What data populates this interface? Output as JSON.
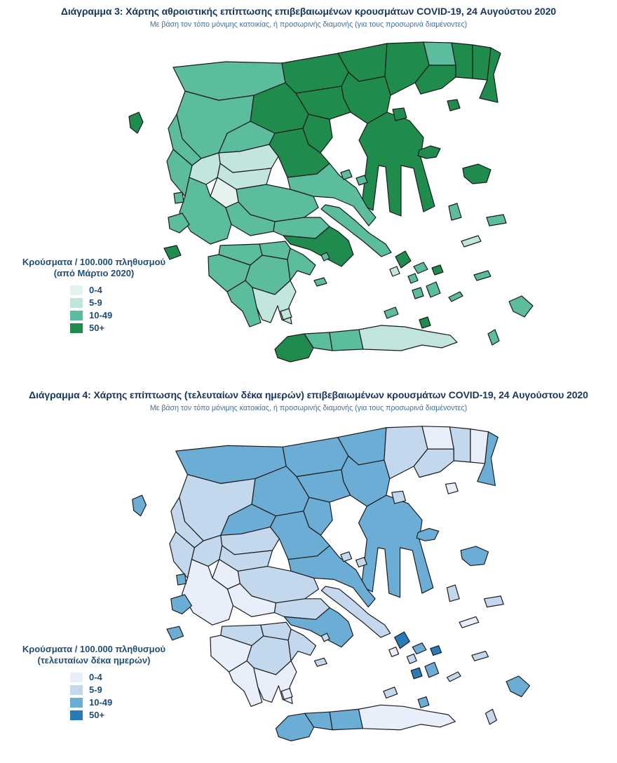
{
  "colors": {
    "title_text": "#17365d",
    "subtitle_text": "#41719c",
    "legend_text": "#1f4e79",
    "region_border": "#1a1a1a"
  },
  "figures": [
    {
      "title": "Διάγραμμα 3: Χάρτης αθροιστικής επίπτωσης επιβεβαιωμένων κρουσμάτων COVID-19, 24 Αυγούστου 2020",
      "subtitle": "Με βάση τον τόπο μόνιμης κατοικίας, ή προσωρινής διαμονής (για τους προσωρινά διαμένοντες)",
      "legend_title": "Κρούσματα / 100.000 πληθυσμού",
      "legend_subtitle": "(από Μάρτιο 2020)",
      "classes": [
        {
          "label": "0-4",
          "color": "#e4f3f0"
        },
        {
          "label": "5-9",
          "color": "#c2e5de"
        },
        {
          "label": "10-49",
          "color": "#5cbc9e"
        },
        {
          "label": "50+",
          "color": "#1f8c4e"
        }
      ],
      "region_categories": {
        "florina_kastoria": 2,
        "pella": 3,
        "kilkis": 3,
        "serres": 3,
        "drama": 2,
        "kavala": 3,
        "xanthi": 3,
        "rodopi": 3,
        "evros": 3,
        "thessaloniki": 3,
        "chalkidiki": 3,
        "imathia": 3,
        "pieria": 3,
        "kozani": 3,
        "grevena": 2,
        "ioannina": 2,
        "thesprotia": 2,
        "trikala": 1,
        "larissa": 3,
        "karditsa": 1,
        "arta": 1,
        "preveza": 2,
        "magnisia": 2,
        "fthiotida": 2,
        "evrytania": 0,
        "aetolia": 2,
        "fokida": 2,
        "viotia": 2,
        "attica": 3,
        "evia": 2,
        "corinthia": 2,
        "achaia": 2,
        "ilia": 2,
        "arkadia": 2,
        "argolida": 2,
        "messinia": 2,
        "lakonia": 1,
        "corfu": 3,
        "lefkada": 2,
        "kefalonia": 2,
        "zakynthos": 3,
        "kythira": 1,
        "thasos": 3,
        "samothraki": 3,
        "limnos": 3,
        "lesvos": 3,
        "chios": 2,
        "samos": 2,
        "ikaria": 1,
        "sporades_a": 2,
        "sporades_b": 2,
        "andros": 3,
        "tinos": 2,
        "mykonos": 3,
        "syros": 2,
        "kea": 1,
        "paros": 2,
        "naxos": 2,
        "amorgos": 2,
        "milos": 2,
        "santorini": 3,
        "aegina": 2,
        "hydra": 2,
        "kos": 2,
        "rhodes": 2,
        "karpathos": 2,
        "chania": 3,
        "rethymno": 2,
        "heraklio": 2,
        "lasithi": 1
      }
    },
    {
      "title": "Διάγραμμα 4: Χάρτης επίπτωσης (τελευταίων δέκα ημερών) επιβεβαιωμένων κρουσμάτων COVID-19, 24 Αυγούστου 2020",
      "subtitle": "Με βάση τον τόπο μόνιμης κατοικίας, ή προσωρινής διαμονής (για τους προσωρινά διαμένοντες)",
      "legend_title": "Κρούσματα / 100.000 πληθυσμού",
      "legend_subtitle": "(τελευταίων δέκα ημερών)",
      "classes": [
        {
          "label": "0-4",
          "color": "#e9effa"
        },
        {
          "label": "5-9",
          "color": "#c3d8ec"
        },
        {
          "label": "10-49",
          "color": "#6cadd6"
        },
        {
          "label": "50+",
          "color": "#2b7ab8"
        }
      ],
      "region_categories": {
        "florina_kastoria": 2,
        "pella": 2,
        "kilkis": 2,
        "serres": 1,
        "drama": 0,
        "kavala": 1,
        "xanthi": 1,
        "rodopi": 0,
        "evros": 2,
        "thessaloniki": 2,
        "chalkidiki": 2,
        "imathia": 2,
        "pieria": 2,
        "kozani": 2,
        "grevena": 2,
        "ioannina": 1,
        "thesprotia": 1,
        "trikala": 1,
        "larissa": 2,
        "karditsa": 1,
        "arta": 1,
        "preveza": 1,
        "magnisia": 2,
        "fthiotida": 1,
        "evrytania": 0,
        "aetolia": 0,
        "fokida": 0,
        "viotia": 1,
        "attica": 2,
        "evia": 1,
        "corinthia": 1,
        "achaia": 1,
        "ilia": 0,
        "arkadia": 1,
        "argolida": 1,
        "messinia": 0,
        "lakonia": 0,
        "corfu": 2,
        "lefkada": 2,
        "kefalonia": 2,
        "zakynthos": 2,
        "kythira": 0,
        "thasos": 1,
        "samothraki": 0,
        "limnos": 2,
        "lesvos": 2,
        "chios": 1,
        "samos": 1,
        "ikaria": 0,
        "sporades_a": 1,
        "sporades_b": 1,
        "andros": 3,
        "tinos": 2,
        "mykonos": 3,
        "syros": 1,
        "kea": 0,
        "paros": 3,
        "naxos": 2,
        "amorgos": 1,
        "milos": 1,
        "santorini": 2,
        "aegina": 1,
        "hydra": 1,
        "kos": 1,
        "rhodes": 2,
        "karpathos": 1,
        "chania": 2,
        "rethymno": 2,
        "heraklio": 2,
        "lasithi": 0
      }
    }
  ]
}
